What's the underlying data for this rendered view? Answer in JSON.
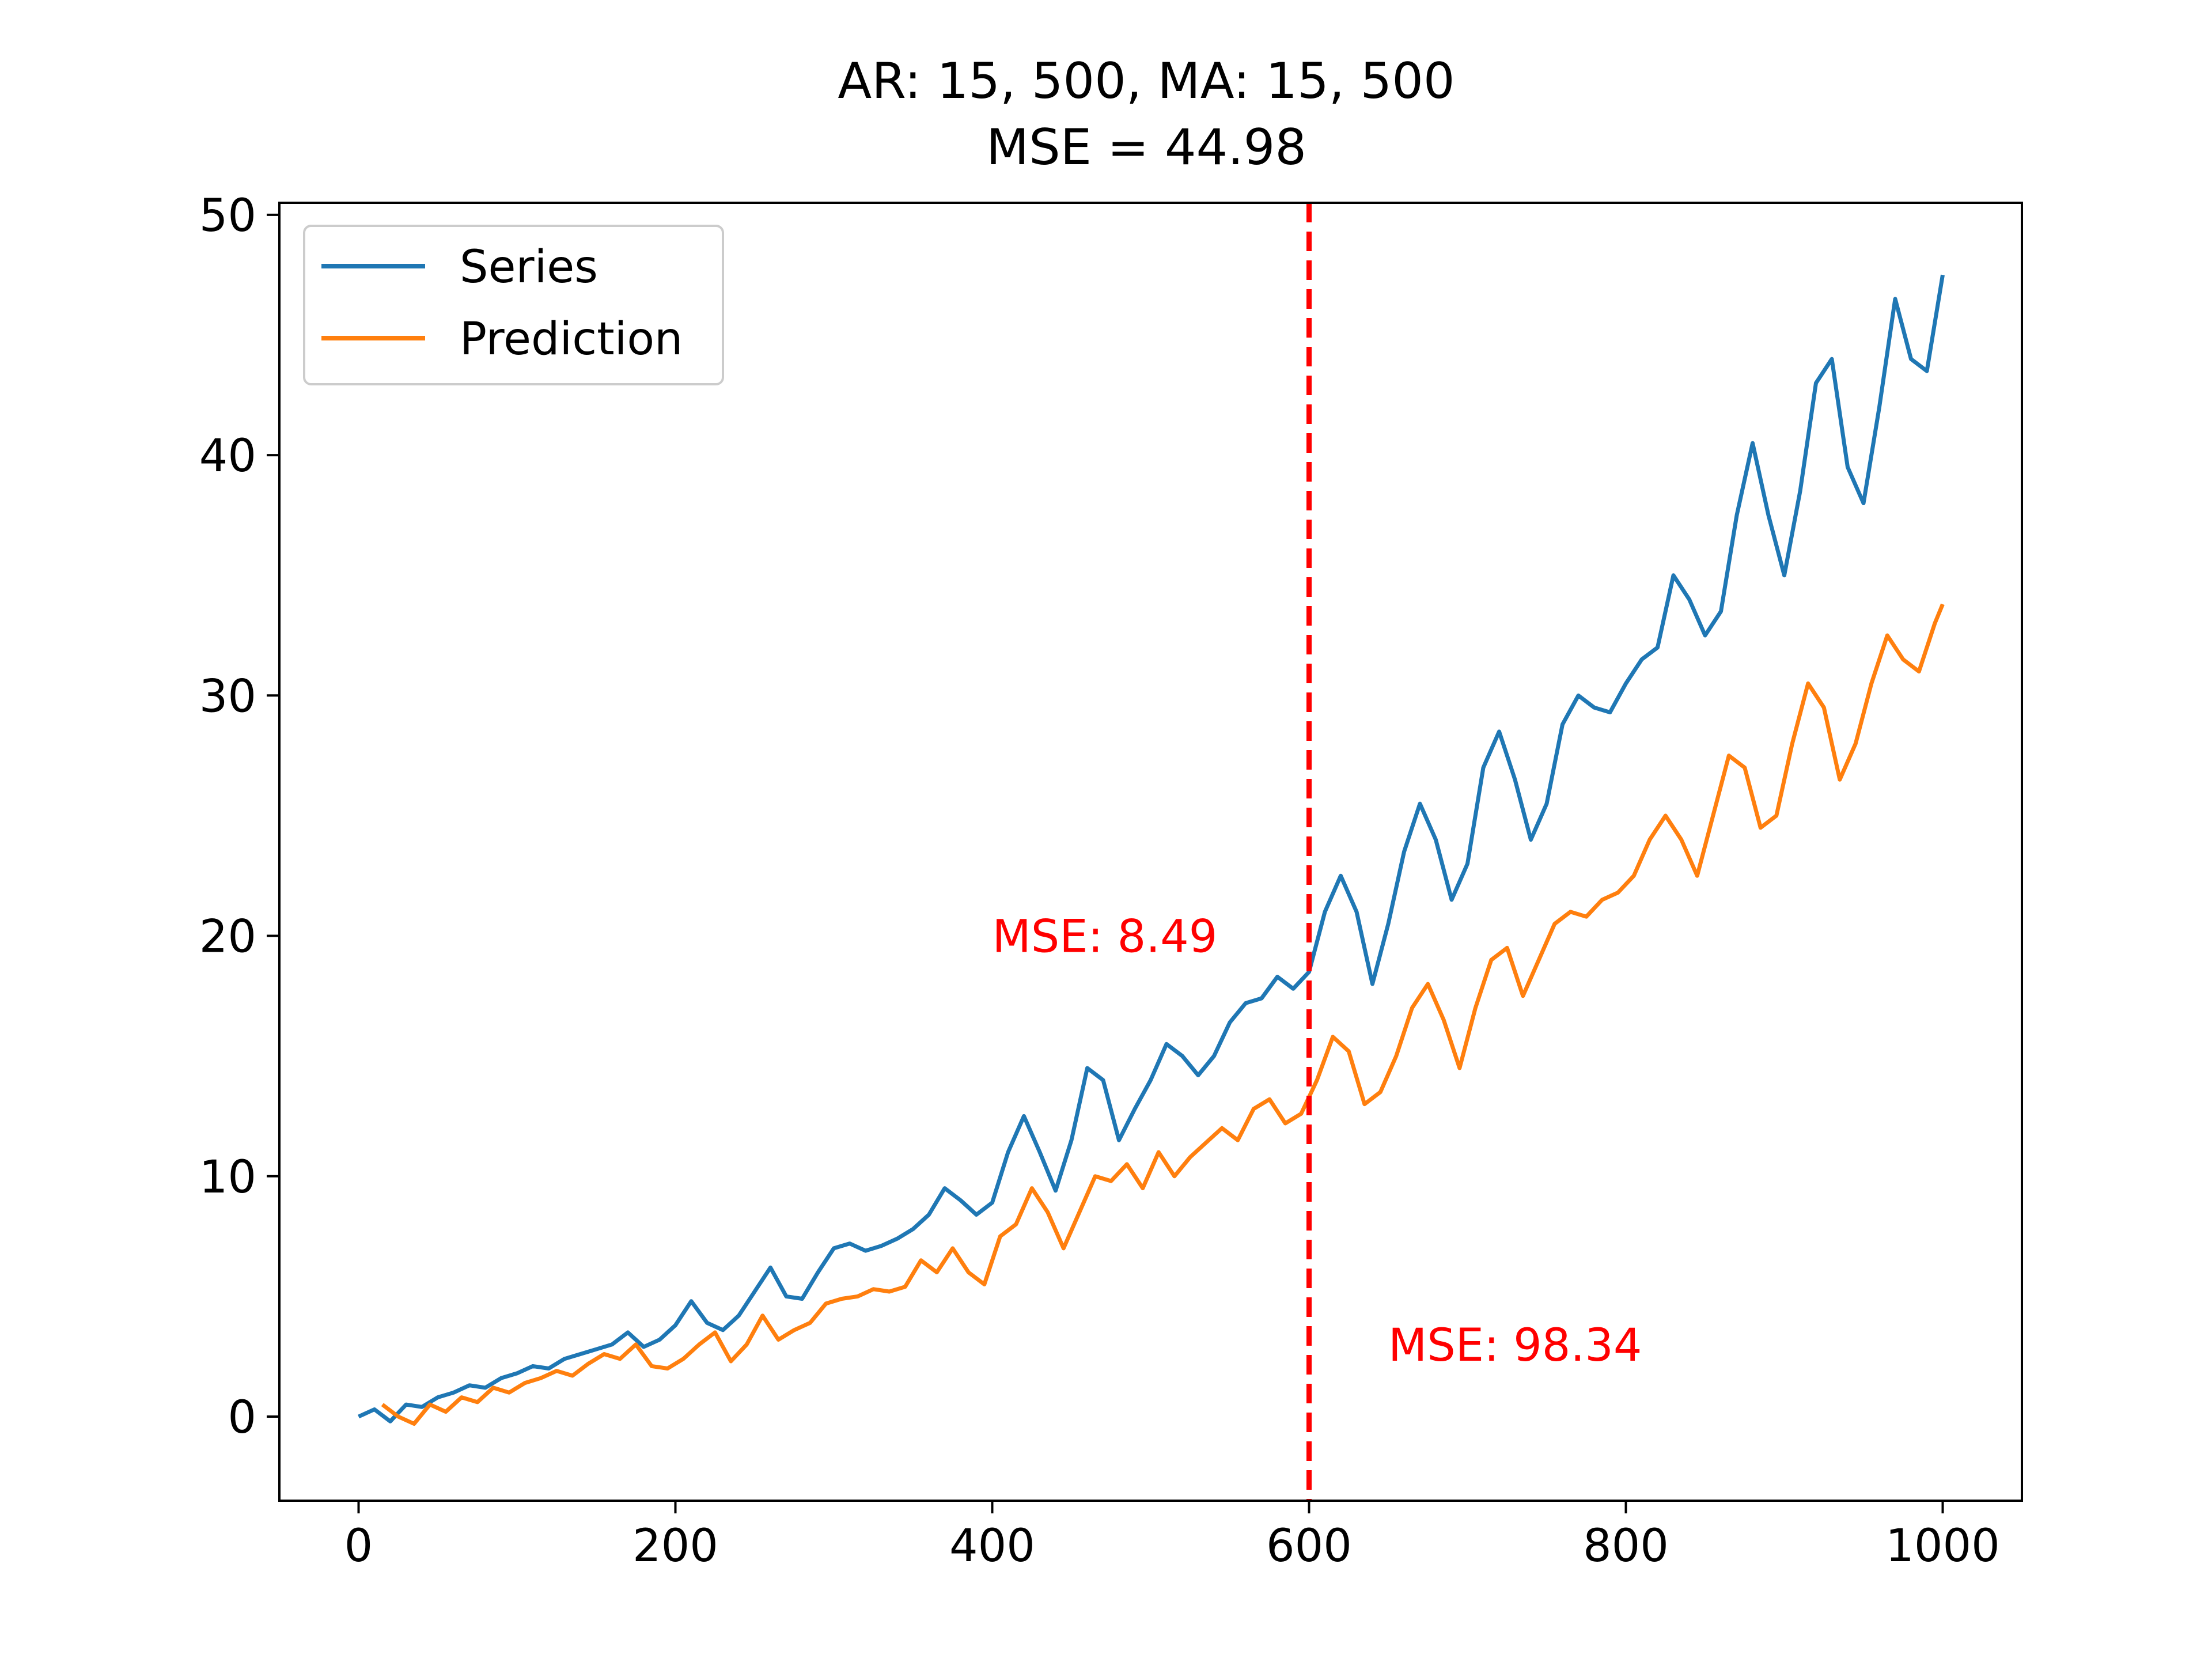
{
  "chart_data": {
    "type": "line",
    "title_line1": "AR: 15, 500, MA: 15, 500",
    "title_line2": "MSE = 44.98",
    "xlabel": "",
    "ylabel": "",
    "xlim": [
      -50,
      1050
    ],
    "ylim": [
      -3.5,
      50.5
    ],
    "xticks": [
      0,
      200,
      400,
      600,
      800,
      1000
    ],
    "yticks": [
      0,
      10,
      20,
      30,
      40,
      50
    ],
    "grid": false,
    "legend_position": "upper left",
    "split_line": {
      "x": 600,
      "color": "#ff0000",
      "style": "dashed"
    },
    "annotations": [
      {
        "text": "MSE: 8.49",
        "x": 400,
        "y": 20,
        "color": "#ff0000"
      },
      {
        "text": "MSE: 98.34",
        "x": 650,
        "y": 3,
        "color": "#ff0000"
      }
    ],
    "series": [
      {
        "name": "Series",
        "color": "#1f77b4",
        "x": [
          0,
          10,
          20,
          30,
          40,
          50,
          60,
          70,
          80,
          90,
          100,
          110,
          120,
          130,
          140,
          150,
          160,
          170,
          180,
          190,
          200,
          210,
          220,
          230,
          240,
          250,
          260,
          270,
          280,
          290,
          300,
          310,
          320,
          330,
          340,
          350,
          360,
          370,
          380,
          390,
          400,
          410,
          420,
          430,
          440,
          450,
          460,
          470,
          480,
          490,
          500,
          510,
          520,
          530,
          540,
          550,
          560,
          570,
          580,
          590,
          600,
          610,
          620,
          630,
          640,
          650,
          660,
          670,
          680,
          690,
          700,
          710,
          720,
          730,
          740,
          750,
          760,
          770,
          780,
          790,
          800,
          810,
          820,
          830,
          840,
          850,
          860,
          870,
          880,
          890,
          900,
          910,
          920,
          930,
          940,
          950,
          960,
          970,
          980,
          990,
          1000
        ],
        "values": [
          0.0,
          0.3,
          -0.2,
          0.5,
          0.4,
          0.8,
          1.0,
          1.3,
          1.2,
          1.6,
          1.8,
          2.1,
          2.0,
          2.4,
          2.6,
          2.8,
          3.0,
          3.5,
          2.9,
          3.2,
          3.8,
          4.8,
          3.9,
          3.6,
          4.2,
          5.2,
          6.2,
          5.0,
          4.9,
          6.0,
          7.0,
          7.2,
          6.9,
          7.1,
          7.4,
          7.8,
          8.4,
          9.5,
          9.0,
          8.4,
          8.9,
          11.0,
          12.5,
          11.0,
          9.4,
          11.5,
          14.5,
          14.0,
          11.5,
          12.8,
          14.0,
          15.5,
          15.0,
          14.2,
          15.0,
          16.4,
          17.2,
          17.4,
          18.3,
          17.8,
          18.5,
          21.0,
          22.5,
          21.0,
          18.0,
          20.5,
          23.5,
          25.5,
          24.0,
          21.5,
          23.0,
          27.0,
          28.5,
          26.5,
          24.0,
          25.5,
          28.8,
          30.0,
          29.5,
          29.3,
          30.5,
          31.5,
          32.0,
          35.0,
          34.0,
          32.5,
          33.5,
          37.5,
          40.5,
          37.5,
          35.0,
          38.5,
          43.0,
          44.0,
          39.5,
          38.0,
          42.0,
          46.5,
          44.0,
          43.5,
          47.5
        ]
      },
      {
        "name": "Prediction",
        "color": "#ff7f0e",
        "x": [
          15,
          25,
          35,
          45,
          55,
          65,
          75,
          85,
          95,
          105,
          115,
          125,
          135,
          145,
          155,
          165,
          175,
          185,
          195,
          205,
          215,
          225,
          235,
          245,
          255,
          265,
          275,
          285,
          295,
          305,
          315,
          325,
          335,
          345,
          355,
          365,
          375,
          385,
          395,
          405,
          415,
          425,
          435,
          445,
          455,
          465,
          475,
          485,
          495,
          505,
          515,
          525,
          535,
          545,
          555,
          565,
          575,
          585,
          595,
          605,
          615,
          625,
          635,
          645,
          655,
          665,
          675,
          685,
          695,
          705,
          715,
          725,
          735,
          745,
          755,
          765,
          775,
          785,
          795,
          805,
          815,
          825,
          835,
          845,
          855,
          865,
          875,
          885,
          895,
          905,
          915,
          925,
          935,
          945,
          955,
          965,
          975,
          985,
          995,
          1000
        ],
        "values": [
          0.5,
          0.0,
          -0.3,
          0.5,
          0.2,
          0.8,
          0.6,
          1.2,
          1.0,
          1.4,
          1.6,
          1.9,
          1.7,
          2.2,
          2.6,
          2.4,
          3.0,
          2.1,
          2.0,
          2.4,
          3.0,
          3.5,
          2.3,
          3.0,
          4.2,
          3.2,
          3.6,
          3.9,
          4.7,
          4.9,
          5.0,
          5.3,
          5.2,
          5.4,
          6.5,
          6.0,
          7.0,
          6.0,
          5.5,
          7.5,
          8.0,
          9.5,
          8.5,
          7.0,
          8.5,
          10.0,
          9.8,
          10.5,
          9.5,
          11.0,
          10.0,
          10.8,
          11.4,
          12.0,
          11.5,
          12.8,
          13.2,
          12.2,
          12.6,
          14.0,
          15.8,
          15.2,
          13.0,
          13.5,
          15.0,
          17.0,
          18.0,
          16.5,
          14.5,
          17.0,
          19.0,
          19.5,
          17.5,
          19.0,
          20.5,
          21.0,
          20.8,
          21.5,
          21.8,
          22.5,
          24.0,
          25.0,
          24.0,
          22.5,
          25.0,
          27.5,
          27.0,
          24.5,
          25.0,
          28.0,
          30.5,
          29.5,
          26.5,
          28.0,
          30.5,
          32.5,
          31.5,
          31.0,
          33.0,
          33.8
        ]
      }
    ]
  }
}
